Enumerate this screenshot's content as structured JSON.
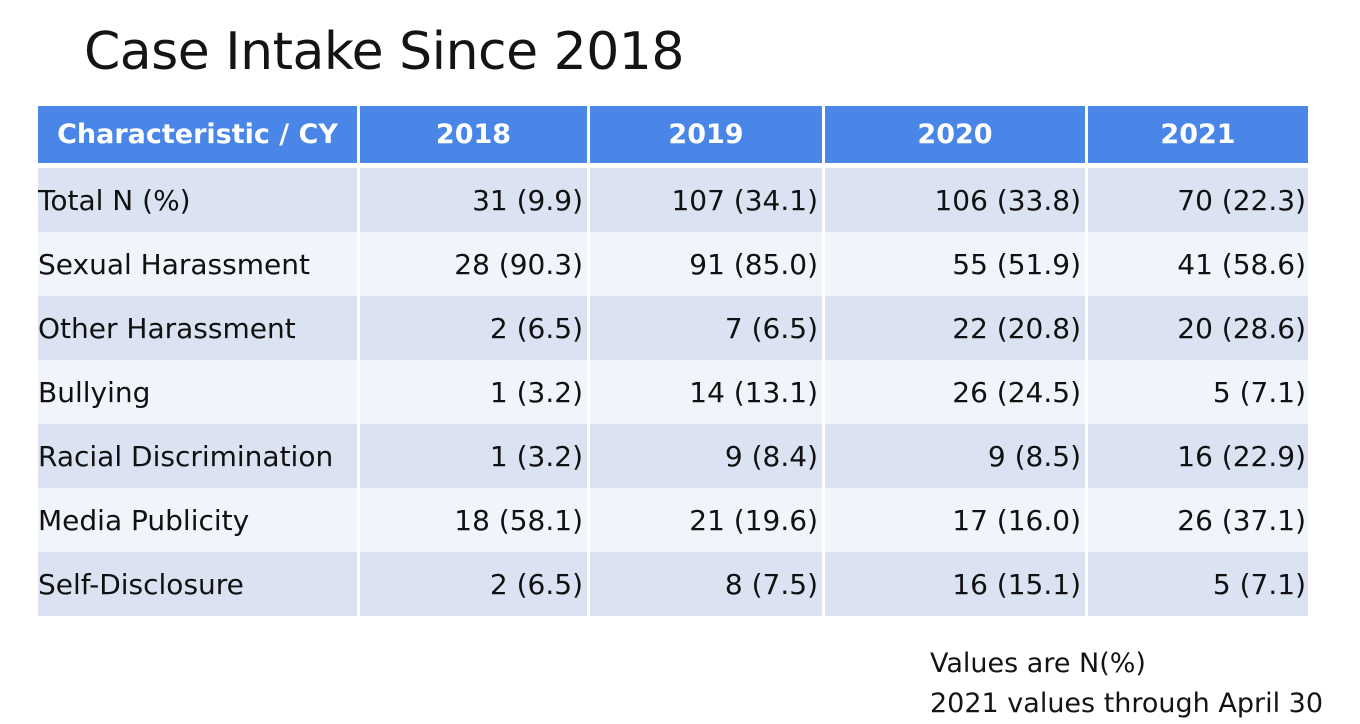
{
  "title": "Case Intake Since 2018",
  "table": {
    "headers": [
      "Characteristic / CY",
      "2018",
      "2019",
      "2020",
      "2021"
    ],
    "rows": [
      [
        "Total N (%)",
        "31 (9.9)",
        "107 (34.1)",
        "106 (33.8)",
        "70 (22.3)"
      ],
      [
        "Sexual Harassment",
        "28 (90.3)",
        "91 (85.0)",
        "55 (51.9)",
        "41 (58.6)"
      ],
      [
        "Other Harassment",
        "2 (6.5)",
        "7 (6.5)",
        "22 (20.8)",
        "20 (28.6)"
      ],
      [
        "Bullying",
        "1 (3.2)",
        "14 (13.1)",
        "26 (24.5)",
        "5 (7.1)"
      ],
      [
        "Racial Discrimination",
        "1 (3.2)",
        "9 (8.4)",
        "9 (8.5)",
        "16 (22.9)"
      ],
      [
        "Media Publicity",
        "18 (58.1)",
        "21 (19.6)",
        "17 (16.0)",
        "26 (37.1)"
      ],
      [
        "Self-Disclosure",
        "2 (6.5)",
        "8 (7.5)",
        "16 (15.1)",
        "5 (7.1)"
      ]
    ]
  },
  "notes": [
    "Values are N(%)",
    "2021 values through April 30"
  ],
  "colors": {
    "header_bg": "#4a86e8",
    "row_band_dark": "#dbe3f3",
    "row_band_light": "#f1f4fa"
  }
}
